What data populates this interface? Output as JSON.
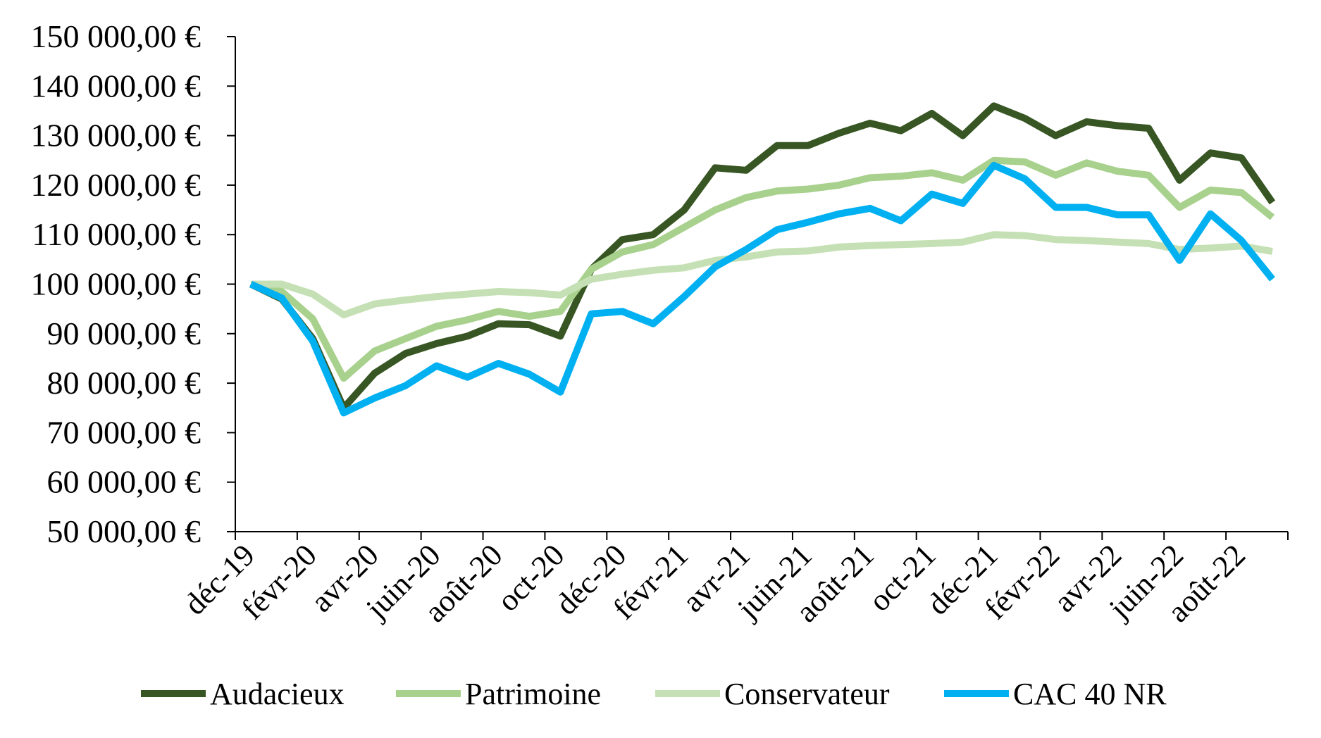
{
  "chart_data": {
    "type": "line",
    "title": "",
    "xlabel": "",
    "ylabel": "",
    "ylim": [
      50000,
      150000
    ],
    "y_ticks": [
      "50 000,00 €",
      "60 000,00 €",
      "70 000,00 €",
      "80 000,00 €",
      "90 000,00 €",
      "100 000,00 €",
      "110 000,00 €",
      "120 000,00 €",
      "130 000,00 €",
      "140 000,00 €",
      "150 000,00 €"
    ],
    "x_tick_labels": [
      "déc-19",
      "févr-20",
      "avr-20",
      "juin-20",
      "août-20",
      "oct-20",
      "déc-20",
      "févr-21",
      "avr-21",
      "juin-21",
      "août-21",
      "oct-21",
      "déc-21",
      "févr-22",
      "avr-22",
      "juin-22",
      "août-22"
    ],
    "x": [
      "2019-12",
      "2020-01",
      "2020-02",
      "2020-03",
      "2020-04",
      "2020-05",
      "2020-06",
      "2020-07",
      "2020-08",
      "2020-09",
      "2020-10",
      "2020-11",
      "2020-12",
      "2021-01",
      "2021-02",
      "2021-03",
      "2021-04",
      "2021-05",
      "2021-06",
      "2021-07",
      "2021-08",
      "2021-09",
      "2021-10",
      "2021-11",
      "2021-12",
      "2022-01",
      "2022-02",
      "2022-03",
      "2022-04",
      "2022-05",
      "2022-06",
      "2022-07",
      "2022-08",
      "2022-09"
    ],
    "grid": false,
    "legend_position": "bottom",
    "series": [
      {
        "name": "Audacieux",
        "color": "#375623",
        "values": [
          100000,
          97000,
          89000,
          75000,
          82000,
          86000,
          88000,
          89500,
          92000,
          91800,
          89500,
          103000,
          109000,
          110000,
          115000,
          123500,
          123000,
          128000,
          128000,
          130500,
          132500,
          131000,
          134500,
          130000,
          136000,
          133500,
          130000,
          132800,
          132000,
          131500,
          121000,
          126500,
          125500,
          116500
        ]
      },
      {
        "name": "Patrimoine",
        "color": "#a9d18e",
        "values": [
          100000,
          98500,
          93000,
          81000,
          86500,
          89000,
          91500,
          92800,
          94500,
          93500,
          94500,
          103000,
          106500,
          108000,
          111500,
          115000,
          117500,
          118800,
          119200,
          120000,
          121500,
          121800,
          122500,
          121000,
          125000,
          124700,
          122000,
          124500,
          122800,
          122000,
          115500,
          119000,
          118500,
          113500
        ]
      },
      {
        "name": "Conservateur",
        "color": "#c5e0b4",
        "values": [
          100000,
          100000,
          98000,
          93800,
          96000,
          96800,
          97500,
          98000,
          98500,
          98300,
          97800,
          101000,
          102000,
          102800,
          103300,
          104800,
          105500,
          106500,
          106700,
          107500,
          107800,
          108000,
          108200,
          108500,
          110000,
          109800,
          109000,
          108800,
          108500,
          108200,
          107000,
          107300,
          107700,
          106600
        ]
      },
      {
        "name": "CAC 40 NR",
        "color": "#00b0f0",
        "values": [
          100000,
          97200,
          88500,
          74000,
          77000,
          79500,
          83500,
          81200,
          84000,
          81800,
          78200,
          94000,
          94500,
          92000,
          97500,
          103500,
          107000,
          111000,
          112500,
          114200,
          115300,
          112800,
          118200,
          116300,
          124000,
          121300,
          115500,
          115500,
          114000,
          114000,
          104800,
          114200,
          108800,
          101000
        ]
      }
    ]
  }
}
